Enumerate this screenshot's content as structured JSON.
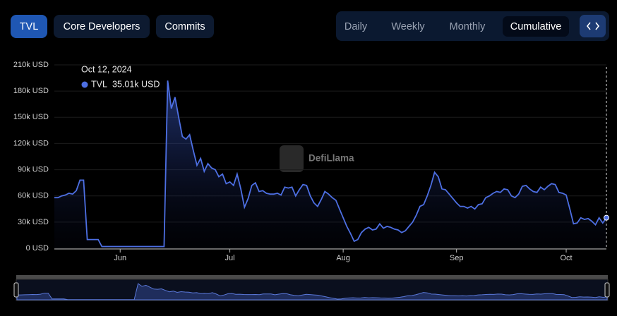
{
  "chart_data": {
    "type": "area",
    "tabs": [
      "TVL",
      "Core Developers",
      "Commits"
    ],
    "active_tab": 0,
    "periods": [
      "Daily",
      "Weekly",
      "Monthly",
      "Cumulative"
    ],
    "active_period": 3,
    "watermark": "DefiLlama",
    "tooltip": {
      "title": "Oct 12, 2024",
      "value_label": "35.01k USD"
    },
    "color": "#4d6fe3",
    "grid": true,
    "ylim": [
      0,
      210
    ],
    "yticks": [
      {
        "value": 0,
        "label": "0 USD"
      },
      {
        "value": 30,
        "label": "30k USD"
      },
      {
        "value": 60,
        "label": "60k USD"
      },
      {
        "value": 90,
        "label": "90k USD"
      },
      {
        "value": 120,
        "label": "120k USD"
      },
      {
        "value": 150,
        "label": "150k USD"
      },
      {
        "value": 180,
        "label": "180k USD"
      },
      {
        "value": 210,
        "label": "210k USD"
      }
    ],
    "categories": [
      null,
      null,
      null,
      null,
      null,
      null,
      null,
      null,
      null,
      null,
      null,
      null,
      null,
      null,
      null,
      null,
      null,
      null,
      "Jun",
      null,
      null,
      null,
      null,
      null,
      null,
      null,
      null,
      null,
      null,
      null,
      null,
      null,
      null,
      null,
      null,
      null,
      null,
      null,
      null,
      null,
      null,
      null,
      null,
      null,
      null,
      null,
      null,
      null,
      "Jul",
      null,
      null,
      null,
      null,
      null,
      null,
      null,
      null,
      null,
      null,
      null,
      null,
      null,
      null,
      null,
      null,
      null,
      null,
      null,
      null,
      null,
      null,
      null,
      null,
      null,
      null,
      null,
      null,
      null,
      null,
      "Aug",
      null,
      null,
      null,
      null,
      null,
      null,
      null,
      null,
      null,
      null,
      null,
      null,
      null,
      null,
      null,
      null,
      null,
      null,
      null,
      null,
      null,
      null,
      null,
      null,
      null,
      null,
      null,
      null,
      null,
      null,
      "Sep",
      null,
      null,
      null,
      null,
      null,
      null,
      null,
      null,
      null,
      null,
      null,
      null,
      null,
      null,
      null,
      null,
      null,
      null,
      null,
      null,
      null,
      null,
      null,
      null,
      null,
      null,
      null,
      null,
      null,
      "Oct",
      null,
      null,
      null,
      null,
      null,
      null,
      null,
      null,
      null,
      null,
      null
    ],
    "series": [
      {
        "name": "TVL",
        "values": [
          58,
          58,
          60,
          61,
          63,
          62,
          66,
          78,
          78,
          10,
          10,
          10,
          10,
          2,
          2,
          2,
          2,
          2,
          2,
          2,
          2,
          2,
          2,
          2,
          2,
          2,
          2,
          2,
          2,
          2,
          2,
          192,
          160,
          173,
          150,
          128,
          125,
          130,
          112,
          95,
          103,
          88,
          97,
          92,
          90,
          82,
          85,
          74,
          76,
          72,
          85,
          68,
          47,
          57,
          72,
          75,
          65,
          66,
          63,
          62,
          62,
          63,
          61,
          70,
          69,
          70,
          60,
          67,
          73,
          72,
          60,
          52,
          48,
          56,
          65,
          62,
          58,
          55,
          45,
          35,
          25,
          17,
          8,
          10,
          18,
          22,
          24,
          21,
          22,
          28,
          23,
          25,
          24,
          22,
          21,
          18,
          20,
          25,
          30,
          38,
          48,
          50,
          60,
          72,
          87,
          82,
          68,
          67,
          62,
          57,
          52,
          48,
          48,
          46,
          48,
          45,
          50,
          51,
          58,
          60,
          63,
          65,
          64,
          68,
          67,
          60,
          58,
          62,
          71,
          72,
          68,
          65,
          64,
          70,
          67,
          71,
          74,
          73,
          64,
          63,
          61,
          45,
          28,
          29,
          35,
          33,
          34,
          31,
          27,
          35,
          29,
          35.01
        ]
      }
    ]
  }
}
